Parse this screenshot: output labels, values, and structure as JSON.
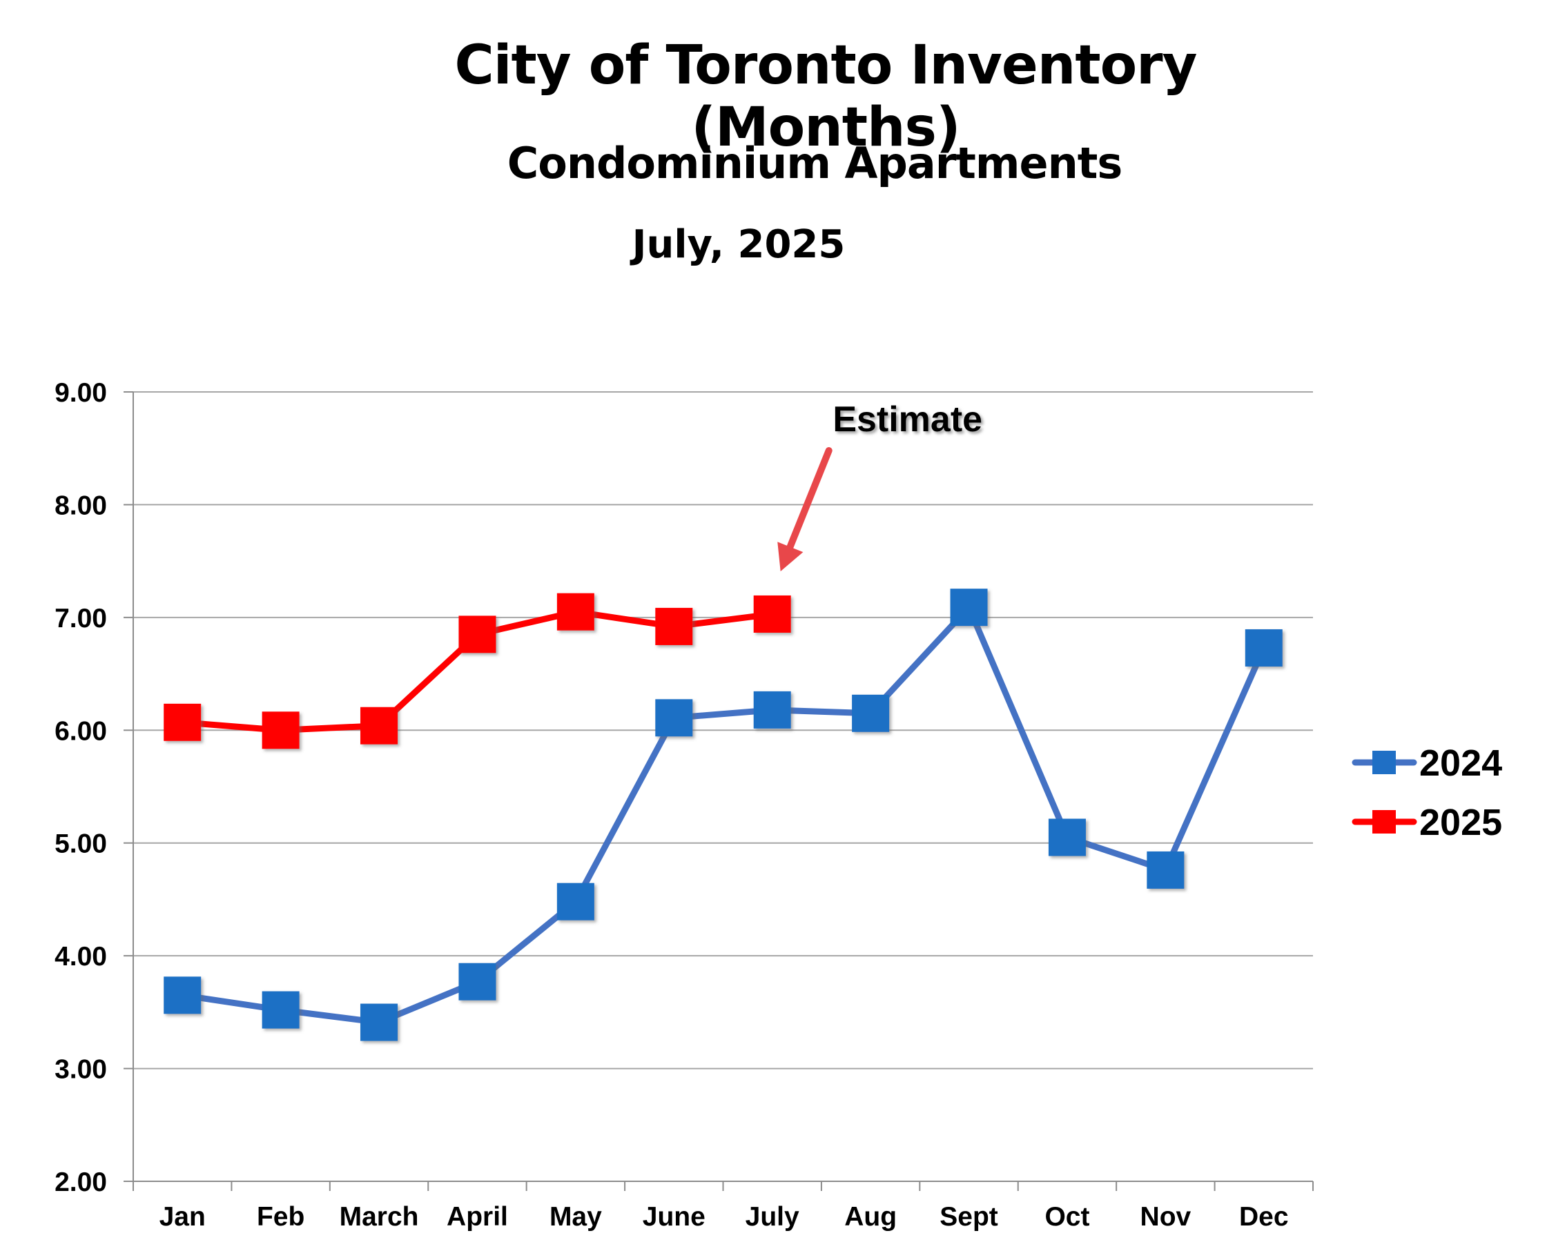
{
  "chart_data": {
    "type": "line",
    "title": "City of Toronto Inventory (Months)",
    "subtitle": "Condominium Apartments",
    "date_label": "July, 2025",
    "categories": [
      "Jan",
      "Feb",
      "March",
      "April",
      "May",
      "June",
      "July",
      "Aug",
      "Sept",
      "Oct",
      "Nov",
      "Dec"
    ],
    "ylim": [
      2.0,
      9.0
    ],
    "yticks": [
      "2.00",
      "3.00",
      "4.00",
      "5.00",
      "6.00",
      "7.00",
      "8.00",
      "9.00"
    ],
    "ytick_values": [
      2,
      3,
      4,
      5,
      6,
      7,
      8,
      9
    ],
    "grid": true,
    "legend_position": "right",
    "series": [
      {
        "name": "2024",
        "color": "#4472C4",
        "marker_color": "#1F6FC5",
        "values": [
          3.65,
          3.52,
          3.41,
          3.77,
          4.48,
          6.11,
          6.18,
          6.15,
          7.09,
          5.05,
          4.76,
          6.73
        ]
      },
      {
        "name": "2025",
        "color": "#FF0000",
        "marker_color": "#FF0000",
        "values": [
          6.07,
          6.0,
          6.04,
          6.85,
          7.05,
          6.92,
          7.03,
          null,
          null,
          null,
          null,
          null
        ]
      }
    ],
    "annotation": {
      "text": "Estimate",
      "target_category": "July",
      "target_series": "2025",
      "arrow_color": "#E8474A"
    }
  }
}
